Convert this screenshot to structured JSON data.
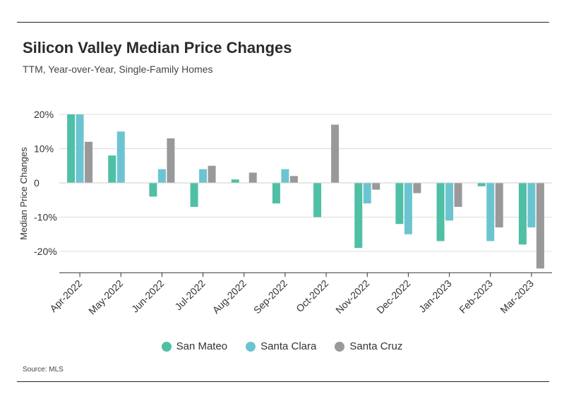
{
  "header": {
    "title": "Silicon Valley Median Price Changes",
    "subtitle": "TTM, Year-over-Year, Single-Family Homes"
  },
  "footer": {
    "source": "Source: MLS"
  },
  "colors": {
    "San Mateo": "#4fbfa5",
    "Santa Clara": "#6cc4d1",
    "Santa Cruz": "#999999"
  },
  "chart_data": {
    "type": "bar",
    "title": "Silicon Valley Median Price Changes",
    "subtitle": "TTM, Year-over-Year, Single-Family Homes",
    "xlabel": "",
    "ylabel": "Median Price Changes",
    "ylim": [
      -25,
      20
    ],
    "yticks": [
      -20,
      -10,
      0,
      10,
      20
    ],
    "ytick_labels": [
      "-20%",
      "-10%",
      "0",
      "10%",
      "20%"
    ],
    "grid": true,
    "legend": "bottom",
    "categories": [
      "Apr-2022",
      "May-2022",
      "Jun-2022",
      "Jul-2022",
      "Aug-2022",
      "Sep-2022",
      "Oct-2022",
      "Nov-2022",
      "Dec-2022",
      "Jan-2023",
      "Feb-2023",
      "Mar-2023"
    ],
    "series": [
      {
        "name": "San Mateo",
        "values": [
          20,
          8,
          -4,
          -7,
          1,
          -6,
          -10,
          -19,
          -12,
          -17,
          -1,
          -18
        ]
      },
      {
        "name": "Santa Clara",
        "values": [
          20,
          15,
          4,
          4,
          0,
          4,
          0,
          -6,
          -15,
          -11,
          -17,
          -13
        ]
      },
      {
        "name": "Santa Cruz",
        "values": [
          12,
          0,
          13,
          5,
          3,
          2,
          17,
          -2,
          -3,
          -7,
          -13,
          -25
        ]
      }
    ]
  }
}
